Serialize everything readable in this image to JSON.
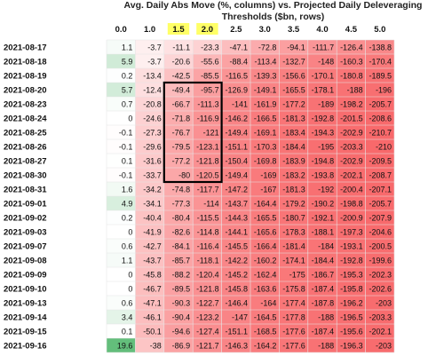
{
  "chart_data": {
    "type": "heatmap",
    "title": "Avg. Daily Abs Move (%, columns) vs. Projected Daily Deleveraging Thresholds ($bn, rows)",
    "columns": [
      "0.0",
      "1.0",
      "1.5",
      "2.0",
      "2.5",
      "3.0",
      "3.5",
      "4.0",
      "4.5",
      "5.0"
    ],
    "highlighted_columns": [
      "1.5",
      "2.0"
    ],
    "rows": [
      "2021-08-17",
      "2021-08-18",
      "2021-08-19",
      "2021-08-20",
      "2021-08-23",
      "2021-08-24",
      "2021-08-25",
      "2021-08-26",
      "2021-08-27",
      "2021-08-30",
      "2021-08-31",
      "2021-09-01",
      "2021-09-02",
      "2021-09-03",
      "2021-09-07",
      "2021-09-08",
      "2021-09-09",
      "2021-09-10",
      "2021-09-13",
      "2021-09-14",
      "2021-09-15",
      "2021-09-16"
    ],
    "values": [
      [
        1.1,
        -3.7,
        -11.1,
        -23.3,
        -47.1,
        -72.8,
        -94.1,
        -111.7,
        -126.4,
        -138.8
      ],
      [
        5.9,
        -3.7,
        -20.6,
        -55.6,
        -88.4,
        -113.4,
        -132.7,
        -148,
        -160.3,
        -170.4
      ],
      [
        0.2,
        -13.4,
        -42.5,
        -85.5,
        -116.5,
        -139.3,
        -156.6,
        -170.1,
        -180.8,
        -189.5
      ],
      [
        5.7,
        -12.4,
        -49.4,
        -95.7,
        -126.9,
        -149.1,
        -165.5,
        -178.1,
        -188,
        -196
      ],
      [
        0.7,
        -20.8,
        -66.7,
        -111.3,
        -141,
        -161.9,
        -177.2,
        -189,
        -198.2,
        -205.7
      ],
      [
        0,
        -24.6,
        -71.8,
        -116.9,
        -146.2,
        -166.5,
        -181.3,
        -192.8,
        -201.5,
        -208.6
      ],
      [
        -0.1,
        -27.3,
        -76.7,
        -121,
        -149.4,
        -169.1,
        -183.4,
        -194.3,
        -202.9,
        -210.7
      ],
      [
        -0.1,
        -29.6,
        -79.5,
        -123.1,
        -151.1,
        -170.3,
        -184.4,
        -195,
        -203.3,
        -210
      ],
      [
        0.1,
        -31.6,
        -77.2,
        -121.8,
        -150.4,
        -169.8,
        -183.9,
        -194.8,
        -202.9,
        -209.5
      ],
      [
        -0.1,
        -33.7,
        -80,
        -120.5,
        -149.4,
        -169,
        -183.2,
        -193.8,
        -202.1,
        -208.7
      ],
      [
        1.6,
        -34.2,
        -74.8,
        -117.7,
        -147.2,
        -167,
        -181.3,
        -192,
        -200.4,
        -207.1
      ],
      [
        4.9,
        -34.1,
        -77.3,
        -114,
        -143.7,
        -164.4,
        -179.2,
        -190.2,
        -198.8,
        -205.7
      ],
      [
        0.2,
        -40.4,
        -80.4,
        -115.5,
        -144.3,
        -165.5,
        -180.7,
        -192.1,
        -200.9,
        -207.9
      ],
      [
        0,
        -41.9,
        -82.6,
        -114.8,
        -144.1,
        -165.6,
        -178.3,
        -188.1,
        -197.3,
        -204.6
      ],
      [
        0.6,
        -42.7,
        -84.1,
        -116.4,
        -145.5,
        -166.4,
        -181.4,
        -184,
        -193.1,
        -200.5
      ],
      [
        1.1,
        -43.7,
        -85.7,
        -118.1,
        -142.2,
        -160.2,
        -174.1,
        -184.4,
        -192.8,
        -199.6
      ],
      [
        0,
        -45.8,
        -88.2,
        -120.4,
        -145.2,
        -162.4,
        -175,
        -186.7,
        -195.3,
        -202.3
      ],
      [
        0,
        -46.7,
        -89.5,
        -121.8,
        -145.8,
        -163.6,
        -175.8,
        -187.4,
        -195.8,
        -202.6
      ],
      [
        0.6,
        -47.1,
        -90.3,
        -122.7,
        -146.4,
        -164,
        -177.4,
        -187.8,
        -196.2,
        -203
      ],
      [
        3.4,
        -46.1,
        -90.4,
        -123.2,
        -147,
        -164.5,
        -177.8,
        -188,
        -196.5,
        -203.3
      ],
      [
        0.1,
        -50.1,
        -94.6,
        -127.4,
        -151.1,
        -168.5,
        -177.6,
        -187.4,
        -195.6,
        -202.1
      ],
      [
        19.6,
        -38,
        -86.9,
        -121.7,
        -146.3,
        -164.2,
        -177.6,
        -188,
        -196.3,
        -203
      ]
    ],
    "highlight_box": {
      "rows_from": "2021-08-20",
      "rows_to": "2021-08-30",
      "cols_from": "1.5",
      "cols_to": "2.0"
    },
    "colors": {
      "positive": "#63be7b",
      "neutral": "#ffffff",
      "negative": "#f8696b",
      "highlight_header": "#ffff66",
      "box": "#000000"
    }
  }
}
